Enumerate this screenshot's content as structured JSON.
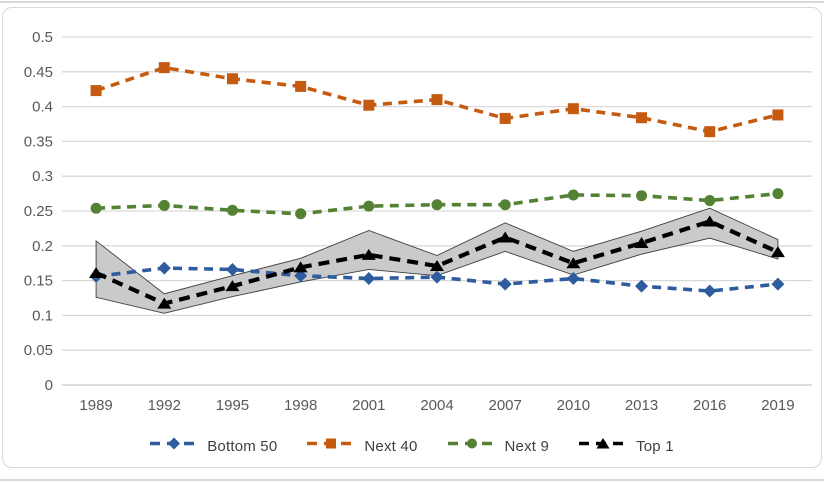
{
  "figure": {
    "border_color": "#d9d9d9",
    "background": "#ffffff"
  },
  "chart_data": {
    "type": "line",
    "title": "",
    "xlabel": "",
    "ylabel": "",
    "grid": true,
    "legend_position": "bottom",
    "ylim": [
      0,
      0.5
    ],
    "y_tick_labels": [
      "0",
      "0.05",
      "0.1",
      "0.15",
      "0.2",
      "0.25",
      "0.3",
      "0.35",
      "0.4",
      "0.45",
      "0.5"
    ],
    "categories": [
      "1989",
      "1992",
      "1995",
      "1998",
      "2001",
      "2004",
      "2007",
      "2010",
      "2013",
      "2016",
      "2019"
    ],
    "series": [
      {
        "name": "Bottom 50",
        "color": "#2F5C9F",
        "marker": "diamond",
        "line_style": "dashed",
        "values": [
          0.156,
          0.168,
          0.166,
          0.157,
          0.153,
          0.155,
          0.145,
          0.153,
          0.142,
          0.135,
          0.145
        ]
      },
      {
        "name": "Next 40",
        "color": "#C55A11",
        "marker": "square",
        "line_style": "dashed",
        "values": [
          0.423,
          0.456,
          0.44,
          0.429,
          0.402,
          0.41,
          0.383,
          0.397,
          0.384,
          0.364,
          0.388
        ]
      },
      {
        "name": "Next 9",
        "color": "#548235",
        "marker": "circle",
        "line_style": "dashed",
        "values": [
          0.254,
          0.258,
          0.251,
          0.246,
          0.257,
          0.259,
          0.259,
          0.273,
          0.272,
          0.265,
          0.275
        ]
      },
      {
        "name": "Top 1",
        "color": "#000000",
        "marker": "triangle",
        "line_style": "dashed",
        "values": [
          0.161,
          0.117,
          0.142,
          0.169,
          0.187,
          0.171,
          0.212,
          0.175,
          0.204,
          0.235,
          0.191
        ],
        "band": {
          "upper": [
            0.207,
            0.131,
            0.157,
            0.182,
            0.222,
            0.186,
            0.233,
            0.192,
            0.221,
            0.254,
            0.209
          ],
          "lower": [
            0.126,
            0.103,
            0.127,
            0.148,
            0.166,
            0.157,
            0.192,
            0.158,
            0.188,
            0.211,
            0.181
          ],
          "fill": "#CACACA",
          "stroke": "#3f3f3f"
        }
      }
    ],
    "colors": {
      "gridline": "#D9D9D9",
      "axis_line": "#C6C6C6",
      "tick_text": "#595959",
      "legend_text": "#404040"
    }
  }
}
